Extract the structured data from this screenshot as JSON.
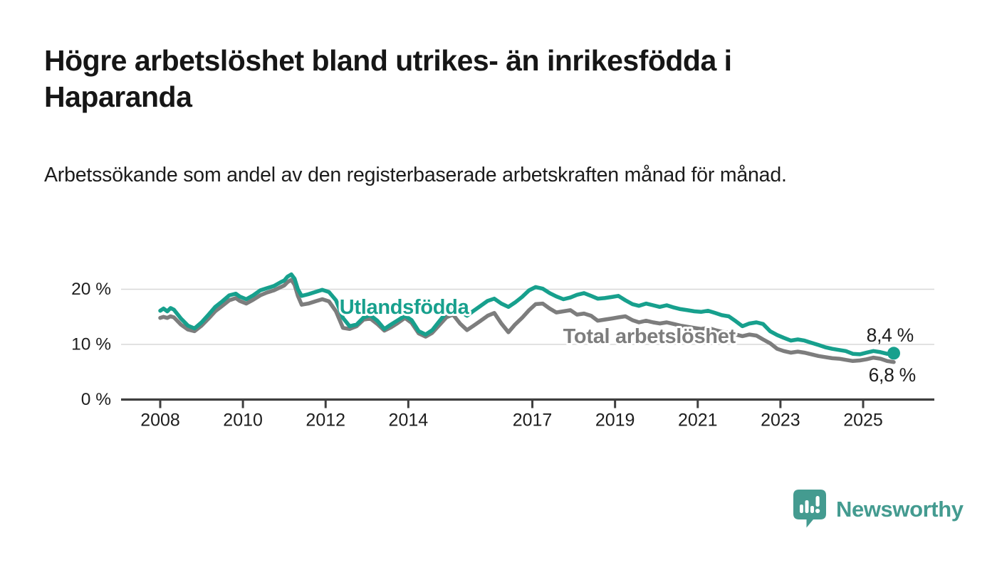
{
  "header": {
    "title": "Högre arbetslöshet bland utrikes- än inrikesfödda i Haparanda",
    "subtitle": "Arbetssökande som andel av den registerbaserade arbetskraften månad för månad."
  },
  "footer": {
    "brand": "Newsworthy",
    "brand_color": "#449b90",
    "logo_icon": "bar-chart-speech-bubble"
  },
  "chart_data": {
    "type": "line",
    "title": "Arbetssökande som andel av den registerbaserade arbetskraften, Haparanda",
    "grid": "horizontal",
    "x_axis": {
      "ticks": [
        2008,
        2010,
        2012,
        2014,
        2017,
        2019,
        2021,
        2023,
        2025
      ],
      "range": [
        2007.0,
        2026.7
      ]
    },
    "y_axis": {
      "unit": "%",
      "range": [
        0,
        24
      ],
      "ticks": [
        {
          "value": 0,
          "label": "0 %"
        },
        {
          "value": 10,
          "label": "10 %"
        },
        {
          "value": 20,
          "label": "20 %"
        }
      ]
    },
    "series": [
      {
        "id": "total",
        "name": "Total arbetslöshet",
        "color": "#7d7d7d",
        "end_label": "6,8 %",
        "end_value": 6.8,
        "end_marker": false,
        "points": [
          [
            2008.0,
            14.8
          ],
          [
            2008.08,
            15.0
          ],
          [
            2008.17,
            14.8
          ],
          [
            2008.25,
            15.1
          ],
          [
            2008.33,
            14.9
          ],
          [
            2008.5,
            13.6
          ],
          [
            2008.67,
            12.7
          ],
          [
            2008.83,
            12.4
          ],
          [
            2009.0,
            13.4
          ],
          [
            2009.17,
            14.7
          ],
          [
            2009.33,
            16.0
          ],
          [
            2009.5,
            17.0
          ],
          [
            2009.67,
            18.0
          ],
          [
            2009.83,
            18.4
          ],
          [
            2009.92,
            17.9
          ],
          [
            2010.08,
            17.4
          ],
          [
            2010.25,
            18.1
          ],
          [
            2010.42,
            18.9
          ],
          [
            2010.58,
            19.4
          ],
          [
            2010.75,
            19.8
          ],
          [
            2010.92,
            20.4
          ],
          [
            2011.0,
            20.7
          ],
          [
            2011.08,
            21.3
          ],
          [
            2011.17,
            21.7
          ],
          [
            2011.25,
            20.8
          ],
          [
            2011.33,
            18.8
          ],
          [
            2011.42,
            17.2
          ],
          [
            2011.58,
            17.4
          ],
          [
            2011.75,
            17.8
          ],
          [
            2011.92,
            18.2
          ],
          [
            2012.08,
            17.8
          ],
          [
            2012.25,
            16.0
          ],
          [
            2012.42,
            13.0
          ],
          [
            2012.58,
            12.8
          ],
          [
            2012.75,
            13.3
          ],
          [
            2012.92,
            14.5
          ],
          [
            2013.08,
            14.7
          ],
          [
            2013.25,
            13.7
          ],
          [
            2013.42,
            12.5
          ],
          [
            2013.58,
            13.1
          ],
          [
            2013.75,
            13.9
          ],
          [
            2013.92,
            14.8
          ],
          [
            2014.08,
            13.9
          ],
          [
            2014.25,
            12.0
          ],
          [
            2014.42,
            11.4
          ],
          [
            2014.58,
            12.1
          ],
          [
            2014.75,
            13.5
          ],
          [
            2014.92,
            14.9
          ],
          [
            2015.08,
            15.4
          ],
          [
            2015.25,
            13.8
          ],
          [
            2015.42,
            12.6
          ],
          [
            2015.58,
            13.4
          ],
          [
            2015.75,
            14.3
          ],
          [
            2015.92,
            15.2
          ],
          [
            2016.08,
            15.7
          ],
          [
            2016.25,
            13.8
          ],
          [
            2016.42,
            12.2
          ],
          [
            2016.58,
            13.6
          ],
          [
            2016.75,
            14.8
          ],
          [
            2016.92,
            16.2
          ],
          [
            2017.08,
            17.3
          ],
          [
            2017.25,
            17.4
          ],
          [
            2017.42,
            16.5
          ],
          [
            2017.58,
            15.8
          ],
          [
            2017.75,
            16.0
          ],
          [
            2017.92,
            16.2
          ],
          [
            2018.08,
            15.4
          ],
          [
            2018.25,
            15.6
          ],
          [
            2018.42,
            15.2
          ],
          [
            2018.58,
            14.3
          ],
          [
            2018.75,
            14.5
          ],
          [
            2018.92,
            14.7
          ],
          [
            2019.08,
            14.9
          ],
          [
            2019.25,
            15.1
          ],
          [
            2019.42,
            14.4
          ],
          [
            2019.58,
            14.0
          ],
          [
            2019.75,
            14.3
          ],
          [
            2019.92,
            14.0
          ],
          [
            2020.08,
            13.8
          ],
          [
            2020.25,
            14.0
          ],
          [
            2020.42,
            13.7
          ],
          [
            2020.58,
            13.4
          ],
          [
            2020.75,
            13.2
          ],
          [
            2020.92,
            13.0
          ],
          [
            2021.08,
            12.8
          ],
          [
            2021.25,
            13.0
          ],
          [
            2021.42,
            12.6
          ],
          [
            2021.58,
            12.3
          ],
          [
            2021.75,
            12.1
          ],
          [
            2021.92,
            11.8
          ],
          [
            2022.08,
            11.5
          ],
          [
            2022.25,
            11.8
          ],
          [
            2022.42,
            11.6
          ],
          [
            2022.58,
            10.9
          ],
          [
            2022.75,
            10.2
          ],
          [
            2022.92,
            9.2
          ],
          [
            2023.08,
            8.8
          ],
          [
            2023.25,
            8.5
          ],
          [
            2023.42,
            8.7
          ],
          [
            2023.58,
            8.5
          ],
          [
            2023.75,
            8.2
          ],
          [
            2023.92,
            7.9
          ],
          [
            2024.08,
            7.7
          ],
          [
            2024.25,
            7.5
          ],
          [
            2024.42,
            7.4
          ],
          [
            2024.58,
            7.2
          ],
          [
            2024.75,
            7.0
          ],
          [
            2024.92,
            7.1
          ],
          [
            2025.08,
            7.3
          ],
          [
            2025.25,
            7.6
          ],
          [
            2025.42,
            7.4
          ],
          [
            2025.58,
            7.0
          ],
          [
            2025.74,
            6.8
          ]
        ]
      },
      {
        "id": "utlandsfodda",
        "name": "Utlandsfödda",
        "color": "#17a08d",
        "end_label": "8,4 %",
        "end_value": 8.4,
        "end_marker": true,
        "points": [
          [
            2008.0,
            16.1
          ],
          [
            2008.08,
            16.5
          ],
          [
            2008.17,
            16.0
          ],
          [
            2008.25,
            16.6
          ],
          [
            2008.33,
            16.3
          ],
          [
            2008.5,
            14.7
          ],
          [
            2008.67,
            13.4
          ],
          [
            2008.83,
            12.9
          ],
          [
            2009.0,
            14.0
          ],
          [
            2009.17,
            15.4
          ],
          [
            2009.33,
            16.8
          ],
          [
            2009.5,
            17.8
          ],
          [
            2009.67,
            18.9
          ],
          [
            2009.83,
            19.2
          ],
          [
            2009.92,
            18.7
          ],
          [
            2010.08,
            18.2
          ],
          [
            2010.25,
            18.9
          ],
          [
            2010.42,
            19.8
          ],
          [
            2010.58,
            20.2
          ],
          [
            2010.75,
            20.6
          ],
          [
            2010.92,
            21.3
          ],
          [
            2011.0,
            21.6
          ],
          [
            2011.08,
            22.3
          ],
          [
            2011.17,
            22.7
          ],
          [
            2011.25,
            21.9
          ],
          [
            2011.33,
            20.0
          ],
          [
            2011.42,
            18.8
          ],
          [
            2011.58,
            19.1
          ],
          [
            2011.75,
            19.5
          ],
          [
            2011.92,
            19.9
          ],
          [
            2012.08,
            19.5
          ],
          [
            2012.25,
            18.0
          ],
          [
            2012.42,
            14.8
          ],
          [
            2012.58,
            13.3
          ],
          [
            2012.75,
            13.6
          ],
          [
            2012.92,
            14.9
          ],
          [
            2013.08,
            15.3
          ],
          [
            2013.25,
            14.3
          ],
          [
            2013.42,
            12.8
          ],
          [
            2013.58,
            13.6
          ],
          [
            2013.75,
            14.4
          ],
          [
            2013.92,
            15.2
          ],
          [
            2014.08,
            14.4
          ],
          [
            2014.25,
            12.4
          ],
          [
            2014.42,
            11.8
          ],
          [
            2014.58,
            12.6
          ],
          [
            2014.75,
            14.2
          ],
          [
            2014.92,
            15.8
          ],
          [
            2015.08,
            16.9
          ],
          [
            2015.25,
            16.0
          ],
          [
            2015.42,
            15.2
          ],
          [
            2015.58,
            16.1
          ],
          [
            2015.75,
            17.0
          ],
          [
            2015.92,
            17.9
          ],
          [
            2016.08,
            18.3
          ],
          [
            2016.25,
            17.4
          ],
          [
            2016.42,
            16.8
          ],
          [
            2016.58,
            17.6
          ],
          [
            2016.75,
            18.6
          ],
          [
            2016.92,
            19.8
          ],
          [
            2017.08,
            20.4
          ],
          [
            2017.25,
            20.1
          ],
          [
            2017.42,
            19.3
          ],
          [
            2017.58,
            18.7
          ],
          [
            2017.75,
            18.2
          ],
          [
            2017.92,
            18.5
          ],
          [
            2018.08,
            19.0
          ],
          [
            2018.25,
            19.3
          ],
          [
            2018.42,
            18.8
          ],
          [
            2018.58,
            18.3
          ],
          [
            2018.75,
            18.4
          ],
          [
            2018.92,
            18.6
          ],
          [
            2019.08,
            18.8
          ],
          [
            2019.25,
            18.0
          ],
          [
            2019.42,
            17.3
          ],
          [
            2019.58,
            17.0
          ],
          [
            2019.75,
            17.4
          ],
          [
            2019.92,
            17.1
          ],
          [
            2020.08,
            16.8
          ],
          [
            2020.25,
            17.1
          ],
          [
            2020.42,
            16.7
          ],
          [
            2020.58,
            16.4
          ],
          [
            2020.75,
            16.2
          ],
          [
            2020.92,
            16.0
          ],
          [
            2021.08,
            15.9
          ],
          [
            2021.25,
            16.1
          ],
          [
            2021.42,
            15.7
          ],
          [
            2021.58,
            15.3
          ],
          [
            2021.75,
            15.1
          ],
          [
            2021.92,
            14.2
          ],
          [
            2022.08,
            13.3
          ],
          [
            2022.25,
            13.8
          ],
          [
            2022.42,
            14.0
          ],
          [
            2022.58,
            13.7
          ],
          [
            2022.75,
            12.4
          ],
          [
            2022.92,
            11.7
          ],
          [
            2023.08,
            11.2
          ],
          [
            2023.25,
            10.7
          ],
          [
            2023.42,
            10.9
          ],
          [
            2023.58,
            10.7
          ],
          [
            2023.75,
            10.3
          ],
          [
            2023.92,
            9.9
          ],
          [
            2024.08,
            9.5
          ],
          [
            2024.25,
            9.2
          ],
          [
            2024.42,
            9.0
          ],
          [
            2024.58,
            8.8
          ],
          [
            2024.75,
            8.3
          ],
          [
            2024.92,
            8.2
          ],
          [
            2025.08,
            8.5
          ],
          [
            2025.25,
            8.8
          ],
          [
            2025.42,
            8.6
          ],
          [
            2025.58,
            8.3
          ],
          [
            2025.74,
            8.4
          ]
        ]
      }
    ],
    "annotations": [
      {
        "text": "Utlandsfödda",
        "t": 2013.9,
        "v": 16.7,
        "color": "#17a08d",
        "style": "series-label"
      },
      {
        "text": "Total arbetslöshet",
        "t": 2019.83,
        "v": 11.45,
        "color": "#7d7d7d",
        "style": "series-label"
      },
      {
        "text": "8,4 %",
        "t": 2025.65,
        "v": 11.7,
        "color": "#1d1d1d",
        "style": "value-label"
      },
      {
        "text": "6,8 %",
        "t": 2025.7,
        "v": 4.45,
        "color": "#1d1d1d",
        "style": "value-label"
      }
    ],
    "legend": "inline-labels"
  }
}
